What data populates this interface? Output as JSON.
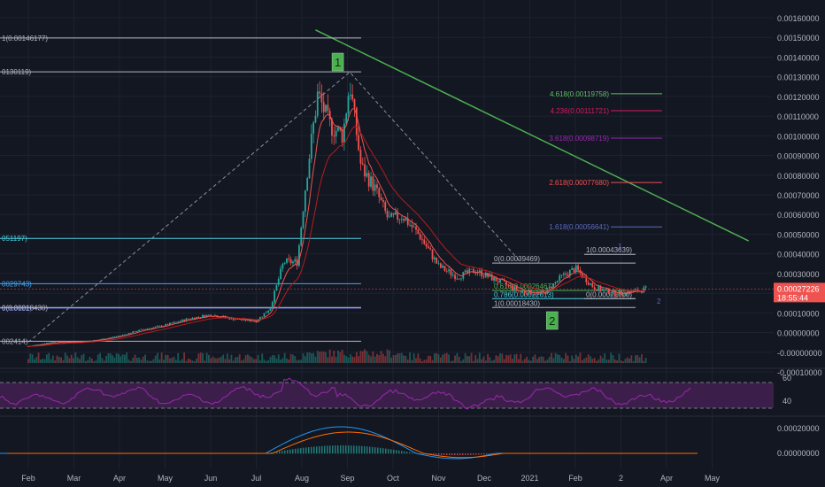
{
  "colors": {
    "bg": "#131722",
    "grid": "#1e2230",
    "axis_text": "#b2b5be",
    "up": "#26a69a",
    "down": "#ef5350",
    "ema_fast": "#ef5350",
    "ema_slow": "#b71c1c",
    "trendline": "#4caf50",
    "fib": "#b2b5be",
    "rsi_line": "#9c27b0",
    "rsi_band": "#3b1f4a",
    "macd_line": "#2196f3",
    "macd_signal": "#ff6d00",
    "price_tag": "#ef5350"
  },
  "chart_data": {
    "type": "candlestick",
    "x_ticks": [
      "Feb",
      "Mar",
      "Apr",
      "May",
      "Jun",
      "Jul",
      "Aug",
      "Sep",
      "Oct",
      "Nov",
      "Dec",
      "2021",
      "Feb",
      "2",
      "Apr",
      "May"
    ],
    "y_ticks": [
      "0.00160000",
      "0.00150000",
      "0.00140000",
      "0.00130000",
      "0.00120000",
      "0.00110000",
      "0.00100000",
      "0.00090000",
      "0.00080000",
      "0.00070000",
      "0.00060000",
      "0.00050000",
      "0.00040000",
      "0.00030000",
      "0.00020000",
      "0.00010000",
      "0.00000000",
      "-0.00000000",
      "-0.00010000"
    ],
    "ylim": [
      -0.0001,
      0.0016
    ],
    "price_path": [
      {
        "t": 0.0,
        "p": 0.0
      },
      {
        "t": 0.5,
        "p": 2e-05
      },
      {
        "t": 1.0,
        "p": 2e-05
      },
      {
        "t": 1.5,
        "p": 3e-05
      },
      {
        "t": 2.0,
        "p": 5e-05
      },
      {
        "t": 2.5,
        "p": 8e-05
      },
      {
        "t": 3.0,
        "p": 0.0001
      },
      {
        "t": 3.5,
        "p": 0.00013
      },
      {
        "t": 4.0,
        "p": 0.00015
      },
      {
        "t": 4.5,
        "p": 0.00013
      },
      {
        "t": 5.0,
        "p": 0.00012
      },
      {
        "t": 5.3,
        "p": 0.00018
      },
      {
        "t": 5.6,
        "p": 0.0004
      },
      {
        "t": 5.9,
        "p": 0.0004
      },
      {
        "t": 6.1,
        "p": 0.0008
      },
      {
        "t": 6.35,
        "p": 0.0012
      },
      {
        "t": 6.6,
        "p": 0.00105
      },
      {
        "t": 6.9,
        "p": 0.001
      },
      {
        "t": 7.05,
        "p": 0.00125
      },
      {
        "t": 7.3,
        "p": 0.00085
      },
      {
        "t": 7.6,
        "p": 0.00075
      },
      {
        "t": 7.9,
        "p": 0.0006
      },
      {
        "t": 8.2,
        "p": 0.00062
      },
      {
        "t": 8.6,
        "p": 0.00052
      },
      {
        "t": 9.0,
        "p": 0.00038
      },
      {
        "t": 9.4,
        "p": 0.00033
      },
      {
        "t": 9.8,
        "p": 0.00036
      },
      {
        "t": 10.3,
        "p": 0.00031
      },
      {
        "t": 10.8,
        "p": 0.00026
      },
      {
        "t": 11.3,
        "p": 0.00025
      },
      {
        "t": 11.7,
        "p": 0.00033
      },
      {
        "t": 12.0,
        "p": 0.00037
      },
      {
        "t": 12.4,
        "p": 0.00028
      },
      {
        "t": 12.9,
        "p": 0.00025
      },
      {
        "t": 13.3,
        "p": 0.00026
      },
      {
        "t": 13.55,
        "p": 0.000272
      }
    ],
    "trendline": {
      "from": {
        "t": 6.3,
        "p": 0.0015
      },
      "to": {
        "t": 15.8,
        "p": 0.0005
      }
    },
    "fib_levels": [
      {
        "label": "1(0.00146177)",
        "value": 0.00146177,
        "color": "#b2b5be"
      },
      {
        "label": "0130119)",
        "value": 0.00130119,
        "color": "#b2b5be"
      },
      {
        "label": "051197)",
        "value": 0.00051197,
        "color": "#4dd0e1"
      },
      {
        "label": "0029743)",
        "value": 0.00029743,
        "color": "#42a5f5"
      },
      {
        "label": "0018122)",
        "value": 0.00018122,
        "color": "#5c6bc0"
      },
      {
        "label": "0(0.00018430)",
        "value": 0.0001843,
        "color": "#b2b5be"
      },
      {
        "label": "002414)",
        "value": 2.414e-05,
        "color": "#b2b5be"
      }
    ],
    "fib_ext": [
      {
        "label": "4.618(0.00119758)",
        "value": 0.00119758,
        "color": "#66bb6a"
      },
      {
        "label": "4.236(0.00111721)",
        "value": 0.00111721,
        "color": "#d81b60"
      },
      {
        "label": "3.618(0.00098719)",
        "value": 0.00098719,
        "color": "#9c27b0"
      },
      {
        "label": "2.618(0.00077680)",
        "value": 0.0007768,
        "color": "#ef5350"
      },
      {
        "label": "1.618(0.00056641)",
        "value": 0.00056641,
        "color": "#5c6bc0"
      }
    ],
    "fib_small": [
      {
        "label": "0(0.00039469)",
        "value": 0.00039469,
        "color": "#b2b5be"
      },
      {
        "label": "1(0.00043639)",
        "value": 0.00043639,
        "color": "#b2b5be"
      },
      {
        "label": "0.618(0.00026467)",
        "value": 0.00026467,
        "color": "#4caf50"
      },
      {
        "label": "0.786(0.00022613)",
        "value": 0.00022613,
        "color": "#4dd0e1"
      },
      {
        "label": "1(0.00018430)",
        "value": 0.0001843,
        "color": "#b2b5be"
      },
      {
        "label": "0(0.00022600)",
        "value": 0.000226,
        "color": "#b2b5be"
      }
    ],
    "wave_labels": [
      "1",
      "2"
    ],
    "wave_marks": [
      "1",
      "2"
    ],
    "current_price": "0.00027226",
    "countdown": "18:55:44",
    "rsi": {
      "ticks": [
        "60",
        "40"
      ],
      "upper": 70,
      "lower": 30
    },
    "macd": {
      "ticks": [
        "0.00020000",
        "0.00000000"
      ]
    }
  }
}
